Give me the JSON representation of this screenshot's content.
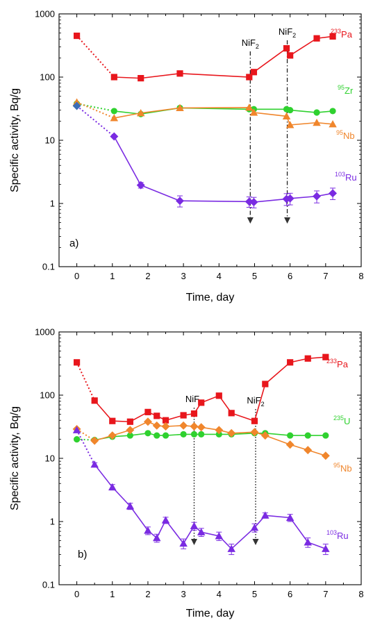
{
  "chart_data": [
    {
      "type": "line",
      "panel_label": "a)",
      "xlabel": "Time, day",
      "ylabel": "Specific activity, Bq/g",
      "xlim": [
        -0.5,
        8
      ],
      "ylim": [
        0.1,
        1000
      ],
      "y_scale": "log",
      "x_ticks": [
        0,
        1,
        2,
        3,
        4,
        5,
        6,
        7,
        8
      ],
      "y_ticks": [
        0.1,
        1,
        10,
        100,
        1000
      ],
      "y_tick_labels": [
        "0.1",
        "1",
        "10",
        "100",
        "1000"
      ],
      "grid": false,
      "events": [
        {
          "label": "NiF",
          "sub": "2",
          "x": 4.88
        },
        {
          "label": "NiF",
          "sub": "2",
          "x": 5.92
        }
      ],
      "series": [
        {
          "name": "Pa",
          "mass": "233",
          "color": "#e8161c",
          "marker": "square",
          "label_pos": "right",
          "extrapolated": {
            "x": [
              0,
              1.05
            ],
            "y": [
              450,
              100
            ]
          },
          "x": [
            1.05,
            1.8,
            2.9,
            4.85,
            4.98,
            5.9,
            6.0,
            6.75,
            7.2
          ],
          "y": [
            100,
            96,
            114,
            100,
            120,
            285,
            220,
            410,
            440
          ],
          "err": [
            0,
            0,
            0,
            0,
            0,
            0,
            0,
            0,
            0
          ]
        },
        {
          "name": "Zr",
          "mass": "95",
          "color": "#2fd12f",
          "marker": "circle",
          "label_pos": "right",
          "extrapolated": {
            "x": [
              0,
              1.05
            ],
            "y": [
              38,
              29
            ]
          },
          "x": [
            1.05,
            1.8,
            2.9,
            4.85,
            4.98,
            5.9,
            6.0,
            6.75,
            7.2
          ],
          "y": [
            29,
            26,
            32.5,
            31,
            31,
            31,
            30,
            27.5,
            29
          ],
          "err": [
            0,
            0,
            0,
            0,
            0,
            0,
            0,
            0,
            0
          ]
        },
        {
          "name": "Nb",
          "mass": "95",
          "color": "#f0862c",
          "marker": "triangle",
          "label_pos": "right",
          "extrapolated": {
            "x": [
              0,
              1.05
            ],
            "y": [
              40,
              22.5
            ]
          },
          "x": [
            1.05,
            1.8,
            2.9,
            4.85,
            4.98,
            5.9,
            6.0,
            6.75,
            7.2
          ],
          "y": [
            22.5,
            27,
            32.5,
            33,
            27.5,
            24,
            17.5,
            19,
            18
          ],
          "err": [
            0,
            0,
            0,
            0,
            0,
            0,
            0,
            0,
            0
          ]
        },
        {
          "name": "Ru",
          "mass": "103",
          "color": "#7a2be2",
          "marker": "diamond",
          "label_pos": "right",
          "extrapolated": {
            "x": [
              0,
              1.05
            ],
            "y": [
              35,
              11.5
            ]
          },
          "x": [
            1.05,
            1.8,
            2.9,
            4.85,
            4.98,
            5.9,
            6.0,
            6.75,
            7.2
          ],
          "y": [
            11.5,
            1.95,
            1.1,
            1.07,
            1.05,
            1.18,
            1.2,
            1.3,
            1.45
          ],
          "err": [
            0.1,
            0.2,
            0.22,
            0.2,
            0.2,
            0.25,
            0.25,
            0.28,
            0.3
          ]
        }
      ]
    },
    {
      "type": "line",
      "panel_label": "b)",
      "xlabel": "Time, day",
      "ylabel": "Specific activity, Bq/g",
      "xlim": [
        -0.5,
        8
      ],
      "ylim": [
        0.1,
        1000
      ],
      "y_scale": "log",
      "x_ticks": [
        0,
        1,
        2,
        3,
        4,
        5,
        6,
        7,
        8
      ],
      "y_ticks": [
        0.1,
        1,
        10,
        100,
        1000
      ],
      "y_tick_labels": [
        "0.1",
        "1",
        "10",
        "100",
        "1000"
      ],
      "grid": false,
      "events": [
        {
          "label": "NiF",
          "sub": "2",
          "x": 3.3
        },
        {
          "label": "NiF",
          "sub": "2",
          "x": 5.03
        }
      ],
      "series": [
        {
          "name": "Pa",
          "mass": "233",
          "color": "#e8161c",
          "marker": "square",
          "label_pos": "right",
          "extrapolated": {
            "x": [
              0,
              0.5
            ],
            "y": [
              330,
              82
            ]
          },
          "x": [
            0.5,
            1.0,
            1.5,
            2.0,
            2.25,
            2.5,
            3.0,
            3.3,
            3.5,
            4.0,
            4.35,
            5.0,
            5.3,
            6.0,
            6.5,
            7.0
          ],
          "y": [
            82,
            39,
            38,
            54,
            47,
            40,
            48,
            51,
            76,
            98,
            52,
            39,
            150,
            330,
            380,
            400
          ],
          "err": [
            0,
            0,
            0,
            0,
            0,
            0,
            0,
            0,
            0,
            0,
            0,
            0,
            0,
            0,
            0,
            0
          ]
        },
        {
          "name": "U",
          "mass": "235",
          "color": "#2fd12f",
          "marker": "circle",
          "label_pos": "right",
          "extrapolated": {
            "x": [
              0,
              0.5
            ],
            "y": [
              20,
              19.5
            ]
          },
          "x": [
            0.5,
            1.0,
            1.5,
            2.0,
            2.25,
            2.5,
            3.0,
            3.3,
            3.5,
            4.0,
            4.35,
            5.0,
            5.3,
            6.0,
            6.5,
            7.0
          ],
          "y": [
            19.5,
            22,
            23,
            25,
            23,
            23,
            24,
            24,
            24,
            24,
            24,
            25,
            25,
            23,
            23,
            23
          ],
          "err": [
            0,
            0,
            0,
            0,
            0,
            0,
            0,
            0,
            0,
            0,
            0,
            0,
            0,
            0,
            0,
            0
          ]
        },
        {
          "name": "Nb",
          "mass": "95",
          "color": "#f0862c",
          "marker": "diamond",
          "label_pos": "right",
          "extrapolated": {
            "x": [
              0,
              0.5
            ],
            "y": [
              29,
              19
            ]
          },
          "x": [
            0.5,
            1.0,
            1.5,
            2.0,
            2.25,
            2.5,
            3.0,
            3.3,
            3.5,
            4.0,
            4.35,
            5.0,
            5.3,
            6.0,
            6.5,
            7.0
          ],
          "y": [
            19,
            23,
            28,
            38,
            33,
            32,
            33,
            32,
            31,
            28,
            25,
            26,
            23,
            16.5,
            13.5,
            11
          ],
          "err": [
            0,
            0,
            0,
            0,
            0,
            0,
            0,
            0,
            0,
            0,
            0,
            0,
            0,
            0,
            0,
            0
          ]
        },
        {
          "name": "Ru",
          "mass": "103",
          "color": "#7a2be2",
          "marker": "triangle",
          "label_pos": "right",
          "extrapolated": {
            "x": [
              0,
              0.5
            ],
            "y": [
              28,
              8
            ]
          },
          "x": [
            0.5,
            1.0,
            1.5,
            2.0,
            2.25,
            2.5,
            3.0,
            3.3,
            3.5,
            4.0,
            4.35,
            5.0,
            5.3,
            6.0,
            6.5,
            7.0
          ],
          "y": [
            8,
            3.5,
            1.75,
            0.72,
            0.55,
            1.05,
            0.45,
            0.85,
            0.68,
            0.59,
            0.37,
            0.8,
            1.25,
            1.15,
            0.47,
            0.37
          ],
          "err": [
            0.5,
            0.35,
            0.2,
            0.1,
            0.08,
            0.12,
            0.08,
            0.12,
            0.1,
            0.09,
            0.07,
            0.12,
            0.12,
            0.15,
            0.08,
            0.07
          ]
        }
      ]
    }
  ]
}
